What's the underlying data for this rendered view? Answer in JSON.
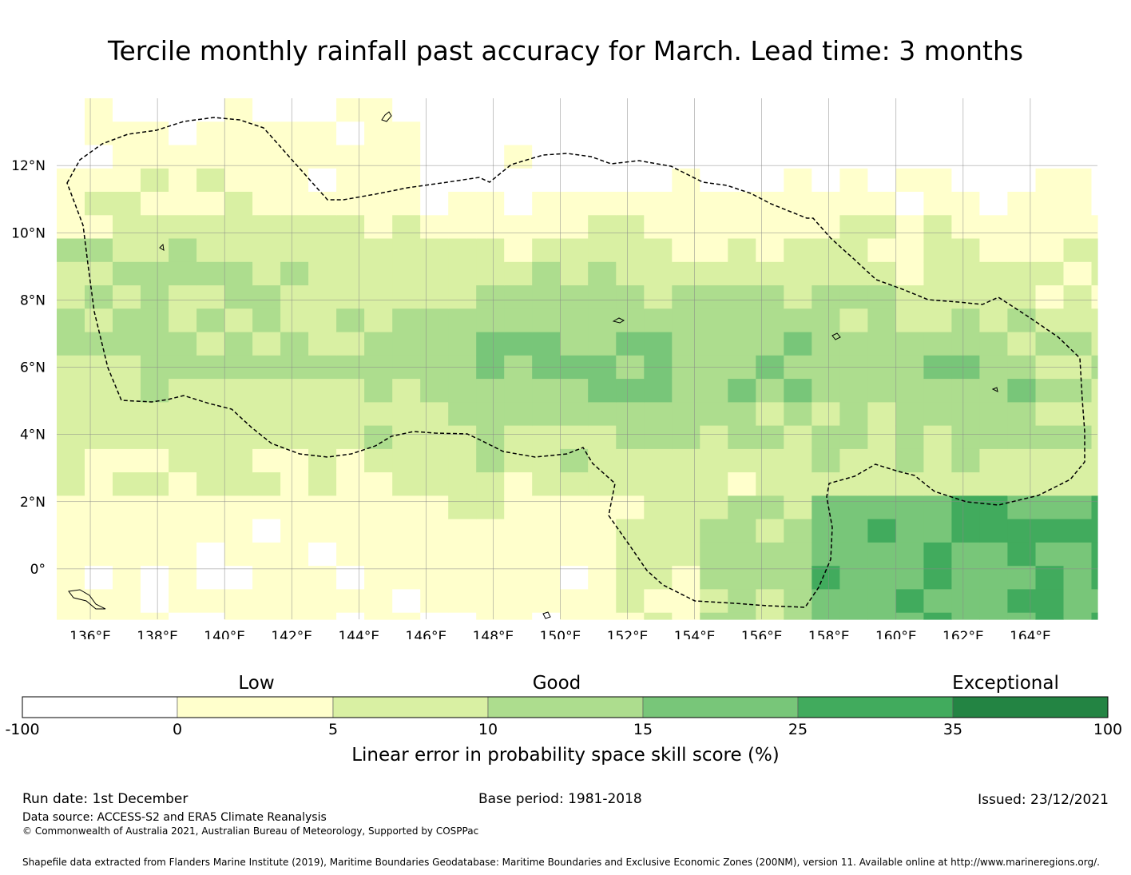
{
  "title": "Tercile monthly rainfall past accuracy for March. Lead time: 3 months",
  "colors": {
    "none": "#ffffff",
    "b0": "#ffffcc",
    "b1": "#d9f0a3",
    "b2": "#addd8e",
    "b3": "#78c679",
    "b4": "#41ab5d",
    "b5": "#238443"
  },
  "map": {
    "lon_labels": [
      "136°E",
      "138°E",
      "140°E",
      "142°E",
      "144°E",
      "146°E",
      "148°E",
      "150°E",
      "152°E",
      "154°E",
      "156°E",
      "158°E",
      "160°E",
      "162°E",
      "164°E"
    ],
    "lat_labels": [
      "12°N",
      "10°N",
      "8°N",
      "6°N",
      "4°N",
      "2°N",
      "0°"
    ],
    "lon_range": [
      135.0,
      166.0
    ],
    "lat_range": [
      -1.5,
      14.0
    ]
  },
  "colorbar": {
    "category_labels": [
      "Low",
      "Good",
      "Exceptional"
    ],
    "ticks": [
      "-100",
      "0",
      "5",
      "10",
      "15",
      "25",
      "35",
      "100"
    ],
    "title": "Linear error in probability space skill score (%)"
  },
  "footer": {
    "run_date": "Run date: 1st December",
    "base_period": "Base period: 1981-2018",
    "issued": "Issued: 23/12/2021",
    "data_source": "Data source: ACCESS-S2 and ERA5 Climate Reanalysis",
    "copyright": "© Commonwealth of Australia 2021, Australian Bureau of Meteorology, Supported by COSPPac",
    "shapefile": "Shapefile data extracted from Flanders Marine Institute (2019), Maritime Boundaries Geodatabase: Maritime Boundaries and Exclusive Economic Zones (200NM), version 11. Available online at http://www.marineregions.org/."
  }
}
